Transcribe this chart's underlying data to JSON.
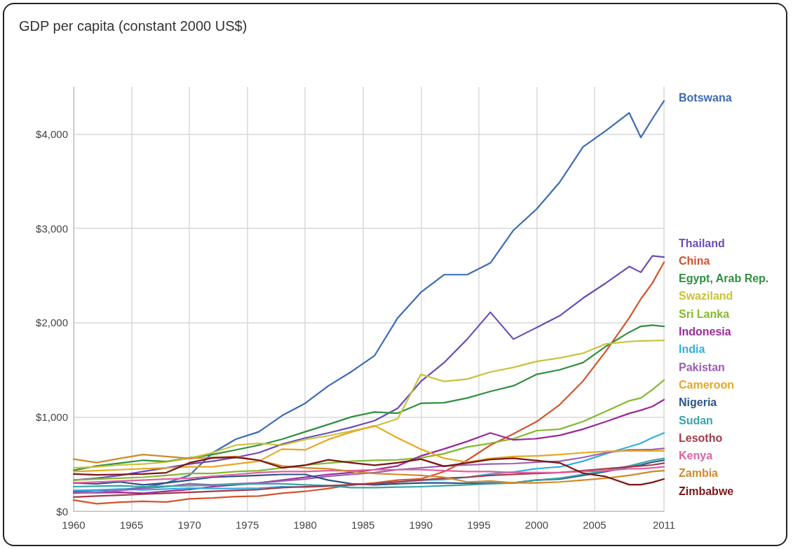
{
  "chart_data": {
    "type": "line",
    "title": "GDP per capita (constant 2000 US$)",
    "x": [
      1960,
      1962,
      1964,
      1966,
      1968,
      1970,
      1972,
      1974,
      1976,
      1978,
      1980,
      1982,
      1984,
      1986,
      1988,
      1990,
      1992,
      1994,
      1996,
      1998,
      2000,
      2002,
      2004,
      2006,
      2008,
      2009,
      2010,
      2011
    ],
    "xlim": [
      1960,
      2011
    ],
    "xticks": [
      1960,
      1965,
      1970,
      1975,
      1980,
      1985,
      1990,
      1995,
      2000,
      2005,
      2011
    ],
    "ylim": [
      0,
      4500
    ],
    "yticks": [
      {
        "value": 0,
        "label": "$0"
      },
      {
        "value": 1000,
        "label": "$1,000"
      },
      {
        "value": 2000,
        "label": "$2,000"
      },
      {
        "value": 3000,
        "label": "$3,000"
      },
      {
        "value": 4000,
        "label": "$4,000"
      }
    ],
    "grid": true,
    "legend": "right",
    "marker": "none",
    "line_style": "solid",
    "series": [
      {
        "name": "Botswana",
        "color": "#3d6bb5",
        "values": [
          210,
          220,
          230,
          250,
          300,
          380,
          618,
          763,
          842,
          1013,
          1144,
          1328,
          1480,
          1650,
          2050,
          2321,
          2508,
          2508,
          2632,
          2980,
          3204,
          3490,
          3863,
          4037,
          4224,
          3963,
          4162,
          4350
        ]
      },
      {
        "name": "Thailand",
        "color": "#6a4cb8",
        "values": [
          330,
          350,
          380,
          420,
          460,
          500,
          530,
          570,
          620,
          710,
          776,
          830,
          890,
          960,
          1091,
          1376,
          1575,
          1824,
          2110,
          1824,
          1948,
          2073,
          2259,
          2421,
          2595,
          2533,
          2707,
          2694
        ]
      },
      {
        "name": "China",
        "color": "#d4542e",
        "values": [
          118,
          79,
          95,
          105,
          97,
          131,
          140,
          155,
          160,
          190,
          210,
          240,
          280,
          300,
          330,
          342,
          420,
          540,
          700,
          820,
          950,
          1130,
          1380,
          1700,
          2050,
          2250,
          2420,
          2640
        ]
      },
      {
        "name": "Egypt, Arab Rep.",
        "color": "#2f9040",
        "values": [
          434,
          480,
          510,
          540,
          526,
          565,
          600,
          650,
          700,
          763,
          842,
          920,
          1000,
          1052,
          1039,
          1144,
          1150,
          1200,
          1270,
          1330,
          1451,
          1500,
          1575,
          1749,
          1898,
          1960,
          1973,
          1960
        ]
      },
      {
        "name": "Swaziland",
        "color": "#c9c23a",
        "values": [
          460,
          470,
          490,
          500,
          520,
          560,
          620,
          700,
          720,
          700,
          760,
          800,
          850,
          900,
          980,
          1451,
          1376,
          1401,
          1476,
          1525,
          1588,
          1625,
          1675,
          1774,
          1799,
          1805,
          1808,
          1811
        ]
      },
      {
        "name": "Sri Lanka",
        "color": "#86b830",
        "values": [
          330,
          340,
          350,
          360,
          380,
          400,
          400,
          420,
          430,
          460,
          490,
          510,
          530,
          540,
          545,
          565,
          610,
          680,
          720,
          769,
          854,
          870,
          950,
          1060,
          1171,
          1200,
          1290,
          1390
        ]
      },
      {
        "name": "Indonesia",
        "color": "#9a2a9a",
        "values": [
          200,
          195,
          200,
          190,
          210,
          230,
          260,
          280,
          300,
          330,
          360,
          390,
          410,
          440,
          480,
          586,
          660,
          740,
          830,
          756,
          769,
          805,
          870,
          950,
          1037,
          1070,
          1110,
          1183
        ]
      },
      {
        "name": "India",
        "color": "#33aee0",
        "values": [
          220,
          225,
          235,
          225,
          235,
          245,
          240,
          240,
          245,
          260,
          255,
          265,
          280,
          290,
          310,
          330,
          335,
          360,
          395,
          415,
          451,
          470,
          530,
          610,
          683,
          720,
          780,
          830
        ]
      },
      {
        "name": "Pakistan",
        "color": "#9a60b0",
        "values": [
          190,
          200,
          220,
          240,
          260,
          290,
          280,
          290,
          300,
          320,
          340,
          370,
          390,
          410,
          440,
          460,
          480,
          490,
          500,
          505,
          520,
          530,
          570,
          620,
          650,
          650,
          655,
          665
        ]
      },
      {
        "name": "Cameroon",
        "color": "#e6a823",
        "values": [
          420,
          430,
          440,
          450,
          460,
          470,
          470,
          500,
          530,
          658,
          650,
          760,
          840,
          907,
          776,
          658,
          561,
          520,
          560,
          580,
          586,
          600,
          620,
          634,
          640,
          640,
          640,
          640
        ]
      },
      {
        "name": "Nigeria",
        "color": "#2c5487",
        "values": [
          300,
          290,
          310,
          280,
          300,
          330,
          360,
          370,
          380,
          390,
          390,
          330,
          290,
          280,
          290,
          300,
          300,
          295,
          300,
          300,
          330,
          340,
          380,
          420,
          470,
          490,
          520,
          540
        ]
      },
      {
        "name": "Sudan",
        "color": "#3aa5a5",
        "values": [
          260,
          265,
          270,
          260,
          265,
          270,
          275,
          285,
          290,
          290,
          280,
          270,
          250,
          250,
          255,
          260,
          270,
          280,
          290,
          300,
          330,
          350,
          390,
          430,
          480,
          510,
          540,
          560
        ]
      },
      {
        "name": "Lesotho",
        "color": "#a23a4a",
        "values": [
          150,
          160,
          170,
          180,
          190,
          200,
          210,
          220,
          230,
          250,
          260,
          270,
          280,
          290,
          310,
          330,
          350,
          360,
          380,
          390,
          400,
          410,
          430,
          450,
          470,
          480,
          490,
          510
        ]
      },
      {
        "name": "Kenya",
        "color": "#e060a0",
        "values": [
          300,
          310,
          320,
          330,
          340,
          350,
          370,
          390,
          410,
          420,
          420,
          430,
          430,
          440,
          440,
          440,
          430,
          420,
          420,
          410,
          410,
          410,
          420,
          430,
          450,
          450,
          460,
          470
        ]
      },
      {
        "name": "Zambia",
        "color": "#d08a28",
        "values": [
          552,
          515,
          560,
          600,
          580,
          560,
          570,
          580,
          540,
          480,
          460,
          450,
          420,
          400,
          390,
          380,
          360,
          310,
          320,
          300,
          300,
          310,
          330,
          350,
          380,
          400,
          420,
          430
        ]
      },
      {
        "name": "Zimbabwe",
        "color": "#7a1616",
        "values": [
          395,
          385,
          390,
          395,
          408,
          513,
          565,
          571,
          540,
          460,
          487,
          545,
          513,
          487,
          513,
          552,
          476,
          512,
          549,
          561,
          537,
          512,
          403,
          366,
          281,
          281,
          305,
          342
        ]
      }
    ]
  }
}
